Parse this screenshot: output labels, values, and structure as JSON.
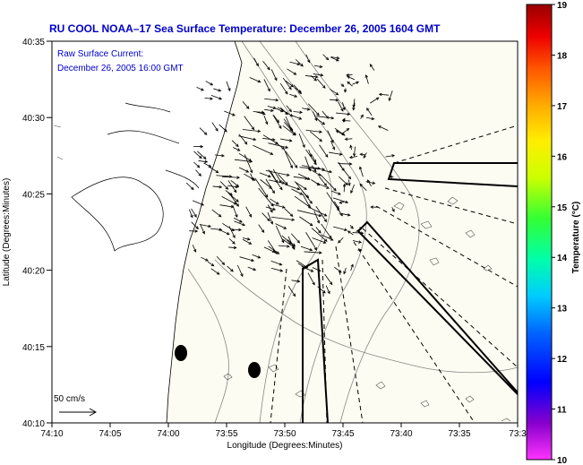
{
  "title": "RU COOL  NOAA–17  Sea Surface Temperature:  December 26, 2005 1604 GMT",
  "annotation": {
    "line1": "Raw Surface Current:",
    "line2": "December 26, 2005 16:00 GMT"
  },
  "scale": {
    "label": "50 cm/s"
  },
  "axes": {
    "xlabel": "Longitude (Degrees:Minutes)",
    "ylabel": "Latitude (Degrees:Minutes)",
    "xticks": [
      "74:10",
      "74:05",
      "74:00",
      "73:55",
      "73:50",
      "73:45",
      "73:40",
      "73:35",
      "73:3"
    ],
    "yticks": [
      "40:35",
      "40:30",
      "40:25",
      "40:20",
      "40:15",
      "40:10"
    ]
  },
  "colorbar": {
    "label": "Temperature (°C)",
    "ticks": [
      "19",
      "18",
      "17",
      "16",
      "15",
      "14",
      "13",
      "12",
      "11",
      "10"
    ]
  },
  "colors": {
    "title": "#0000cc",
    "land": "#ffffff",
    "water": "#fcfcf2",
    "contour": "#888888"
  }
}
